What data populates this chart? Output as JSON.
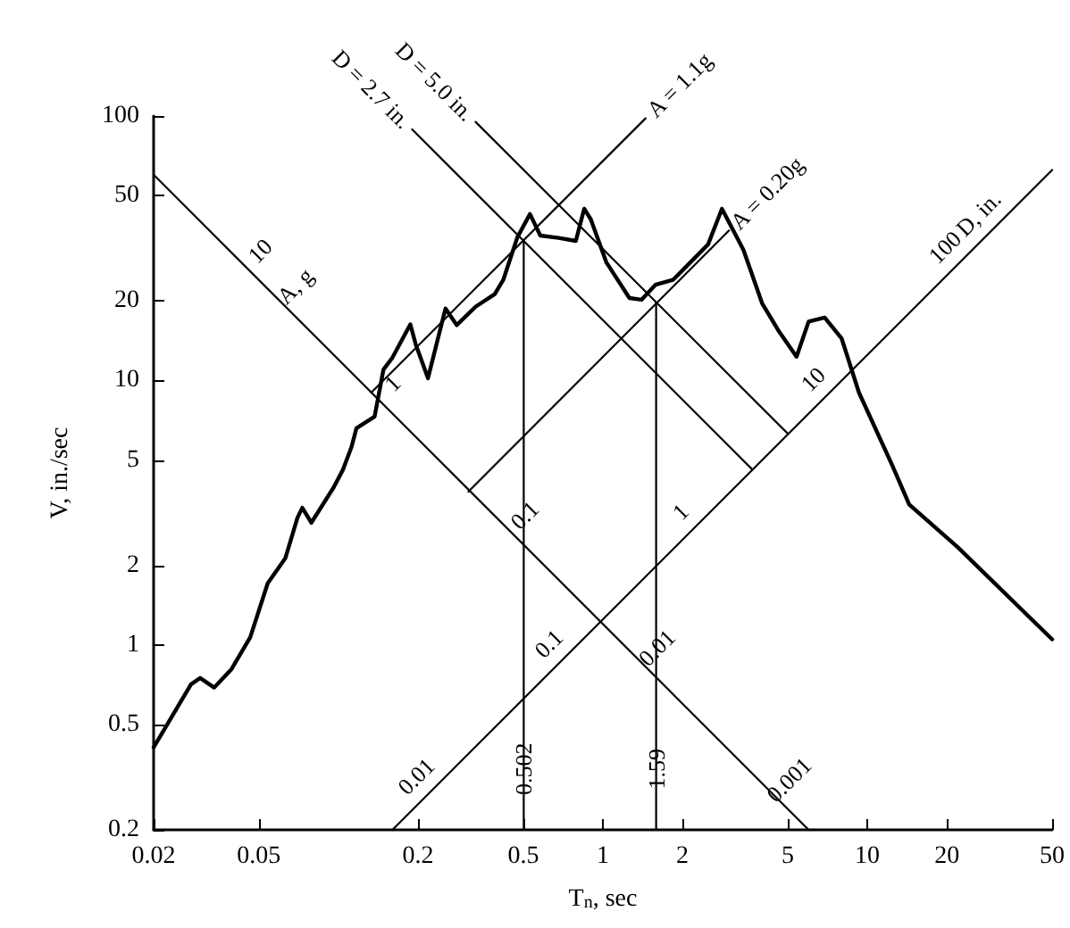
{
  "chart_data": {
    "type": "line",
    "xlabel": "T$_{n}$, sec",
    "ylabel": "V, in./sec",
    "log": "xy",
    "grid": false,
    "legend": false,
    "marker": "none",
    "line_style": "solid",
    "xlim": [
      0.02,
      50
    ],
    "xticks": [
      0.02,
      0.05,
      0.2,
      0.5,
      1,
      2,
      5,
      10,
      20,
      50
    ],
    "ylim": [
      0.2,
      100
    ],
    "yticks": [
      0.2,
      0.5,
      1,
      2,
      5,
      10,
      20,
      50,
      100
    ],
    "series": [
      {
        "color": "#000000",
        "x": [
          0.02,
          0.0277,
          0.03,
          0.0339,
          0.0394,
          0.0464,
          0.054,
          0.063,
          0.07,
          0.073,
          0.079,
          0.096,
          0.104,
          0.112,
          0.117,
          0.137,
          0.148,
          0.16,
          0.187,
          0.196,
          0.218,
          0.254,
          0.28,
          0.33,
          0.39,
          0.42,
          0.475,
          0.53,
          0.58,
          0.68,
          0.79,
          0.85,
          0.9,
          1.03,
          1.26,
          1.4,
          1.58,
          1.84,
          2.5,
          2.82,
          3.4,
          4.0,
          4.6,
          5.4,
          6.0,
          6.9,
          8.0,
          9.3,
          12.4,
          14.4,
          22,
          50
        ],
        "values": [
          0.41,
          0.71,
          0.75,
          0.69,
          0.81,
          1.07,
          1.71,
          2.13,
          3.03,
          3.3,
          2.9,
          3.95,
          4.6,
          5.6,
          6.6,
          7.3,
          11.0,
          12.2,
          16.3,
          13.7,
          10.2,
          18.7,
          16.2,
          19.0,
          21.2,
          24,
          34.8,
          42.6,
          35.3,
          34.6,
          33.7,
          44.6,
          40.7,
          28.0,
          20.5,
          20.2,
          23,
          24,
          32.7,
          44.6,
          31.2,
          19.6,
          15.5,
          12.3,
          16.7,
          17.3,
          14.4,
          9.0,
          4.8,
          3.4,
          2.34,
          1.05
        ]
      },
      {
        "color": "#000000",
        "x": [
          0.02,
          6.0
        ],
        "values": [
          60,
          0.2
        ]
      },
      {
        "color": "#000000",
        "x": [
          0.16,
          50
        ],
        "values": [
          0.2,
          62.5
        ]
      },
      {
        "name": "A = 1.1g",
        "color": "#000000",
        "x": [
          0.133,
          1.45
        ],
        "values": [
          9.0,
          98
        ]
      },
      {
        "name": "A = 0.20g",
        "color": "#000000",
        "x": [
          0.31,
          3.0
        ],
        "values": [
          3.8,
          36.9
        ]
      },
      {
        "name": "D = 2.7 in.",
        "color": "#000000",
        "x": [
          0.19,
          3.68
        ],
        "values": [
          89,
          4.6
        ]
      },
      {
        "name": "D = 5.0 in.",
        "color": "#000000",
        "x": [
          0.33,
          5.0
        ],
        "values": [
          95,
          6.3
        ]
      },
      {
        "color": "#000000",
        "x": [
          0.502,
          0.502,
          0.502
        ],
        "values": [
          0.2,
          3,
          33.8
        ]
      },
      {
        "color": "#000000",
        "x": [
          1.59,
          1.59,
          1.59
        ],
        "values": [
          0.2,
          2,
          19.7
        ]
      }
    ],
    "annotations": [
      {
        "text": "10",
        "x": 0.0442,
        "y": 27.15
      },
      {
        "text": "A, g",
        "x": 0.06,
        "y": 20
      },
      {
        "text": "1",
        "x": 0.14,
        "y": 8.571
      },
      {
        "text": "0.1",
        "x": 0.442,
        "y": 2.715
      },
      {
        "text": "0.01",
        "x": 1.4,
        "y": 0.8571
      },
      {
        "text": "0.001",
        "x": 4.42,
        "y": 0.2715
      },
      {
        "text": "0.01",
        "x": 0.224,
        "y": 0.28
      },
      {
        "text": "0.1",
        "x": 0.71,
        "y": 0.8875
      },
      {
        "text": "1",
        "x": 2.24,
        "y": 2.8
      },
      {
        "text": "10",
        "x": 7.1,
        "y": 8.875
      },
      {
        "text": "100",
        "x": 22.4,
        "y": 28
      },
      {
        "text": "D, in.",
        "x": 30,
        "y": 37.5
      },
      {
        "text": "0.502",
        "x": 0.502,
        "y": 0.34
      },
      {
        "text": "1.59",
        "x": 1.59,
        "y": 0.34
      }
    ]
  }
}
